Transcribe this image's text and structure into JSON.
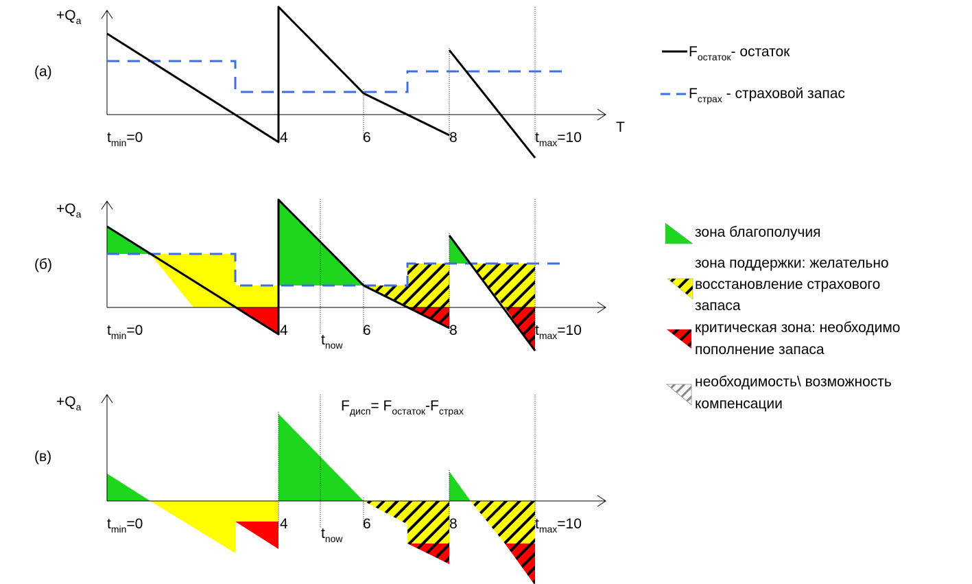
{
  "panels": {
    "a": {
      "label": "(а)",
      "ylabel": "+Q",
      "ylabel_sub": "a",
      "xlabel": "T",
      "ticks": {
        "tmin_pre": "t",
        "tmin_sub": "min",
        "tmin_post": "=0",
        "t4": "4",
        "t6": "6",
        "t8": "8",
        "tmax_pre": "t",
        "tmax_sub": "max",
        "tmax_post": "=10"
      }
    },
    "b": {
      "label": "(б)",
      "ylabel": "+Q",
      "ylabel_sub": "a",
      "ticks": {
        "tmin_pre": "t",
        "tmin_sub": "min",
        "tmin_post": "=0",
        "t4": "4",
        "t6": "6",
        "t8": "8",
        "tmax_pre": "t",
        "tmax_sub": "max",
        "tmax_post": "=10",
        "tnow_pre": "t",
        "tnow_sub": "now"
      }
    },
    "c": {
      "label": "(в)",
      "ylabel": "+Q",
      "ylabel_sub": "a",
      "formula": {
        "f1": "F",
        "f1_sub": "дисп",
        "eq": "= F",
        "f2_sub": "остаток",
        "minus": "-F",
        "f3_sub": "страх"
      },
      "ticks": {
        "tmin_pre": "t",
        "tmin_sub": "min",
        "tmin_post": "=0",
        "t4": "4",
        "t6": "6",
        "t8": "8",
        "tmax_pre": "t",
        "tmax_sub": "max",
        "tmax_post": "=10",
        "tnow_pre": "t",
        "tnow_sub": "now"
      }
    }
  },
  "legend_lines": {
    "rest": {
      "pre": "F",
      "sub": "остаток",
      "post": "- остаток"
    },
    "safety": {
      "pre": "F",
      "sub": "страх",
      "post": " - страховой запас"
    }
  },
  "legend_zones": {
    "green": [
      "зона благополучия"
    ],
    "yellow": [
      "зона поддержки: желательно",
      "восстановление страхового",
      "запаса"
    ],
    "red": [
      "критическая зона: необходимо",
      "пополнение запаса"
    ],
    "hatch": [
      "необходимость\\ возможность",
      "компенсации"
    ]
  },
  "colors": {
    "green": "#1ed61e",
    "yellow": "#ffff00",
    "red": "#ff0000",
    "safety_line": "#3d6fe3",
    "rest_line": "#000000"
  }
}
